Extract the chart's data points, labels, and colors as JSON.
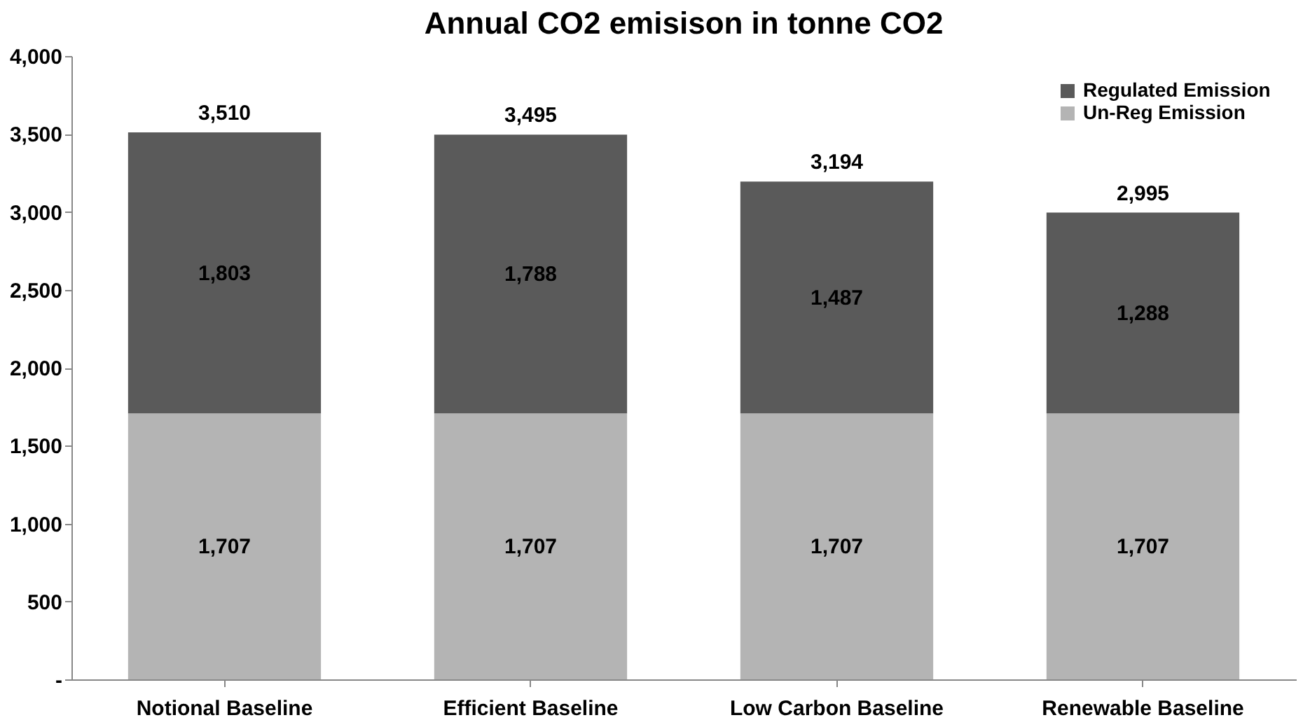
{
  "chart_data": {
    "type": "bar",
    "title": "Annual CO2 emisison in tonne CO2",
    "stacked": true,
    "categories": [
      "Notional Baseline",
      "Efficient Baseline",
      "Low Carbon Baseline",
      "Renewable Baseline"
    ],
    "series": [
      {
        "name": "Un-Reg Emission",
        "color": "#b4b4b4",
        "values": [
          1707,
          1707,
          1707,
          1707
        ],
        "value_labels": [
          "1,707",
          "1,707",
          "1,707",
          "1,707"
        ]
      },
      {
        "name": "Regulated Emission",
        "color": "#5a5a5a",
        "values": [
          1803,
          1788,
          1487,
          1288
        ],
        "value_labels": [
          "1,803",
          "1,788",
          "1,487",
          "1,288"
        ]
      }
    ],
    "totals": [
      "3,510",
      "3,495",
      "3,194",
      "2,995"
    ],
    "ylim": [
      0,
      4000
    ],
    "yticks": [
      {
        "value": 0,
        "label": "-"
      },
      {
        "value": 500,
        "label": "500"
      },
      {
        "value": 1000,
        "label": "1,000"
      },
      {
        "value": 1500,
        "label": "1,500"
      },
      {
        "value": 2000,
        "label": "2,000"
      },
      {
        "value": 2500,
        "label": "2,500"
      },
      {
        "value": 3000,
        "label": "3,000"
      },
      {
        "value": 3500,
        "label": "3,500"
      },
      {
        "value": 4000,
        "label": "4,000"
      }
    ],
    "grid": false,
    "legend": "top right"
  }
}
